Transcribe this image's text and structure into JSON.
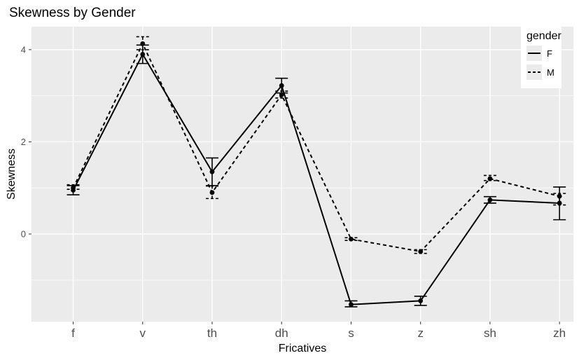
{
  "chart_data": {
    "type": "line",
    "title": "Skewness by Gender",
    "xlabel": "Fricatives",
    "ylabel": "Skewness",
    "categories": [
      "f",
      "v",
      "th",
      "dh",
      "s",
      "z",
      "sh",
      "zh"
    ],
    "ylim": [
      -1.9,
      4.5
    ],
    "yticks": [
      0,
      2,
      4
    ],
    "grid": true,
    "legend": {
      "title": "gender",
      "position": "top-right"
    },
    "series": [
      {
        "name": "F",
        "linestyle": "solid",
        "values": [
          0.95,
          3.9,
          1.35,
          3.22,
          -1.53,
          -1.45,
          0.74,
          0.67
        ],
        "error_low": [
          0.85,
          3.7,
          1.05,
          3.06,
          -1.58,
          -1.55,
          0.67,
          0.31
        ],
        "error_high": [
          1.05,
          4.1,
          1.65,
          3.38,
          -1.45,
          -1.35,
          0.81,
          1.02
        ]
      },
      {
        "name": "M",
        "linestyle": "dashed",
        "values": [
          1.0,
          4.13,
          0.9,
          3.02,
          -0.11,
          -0.38,
          1.2,
          0.82
        ],
        "error_low": [
          0.97,
          4.0,
          0.77,
          2.95,
          -0.14,
          -0.42,
          1.16,
          0.63
        ],
        "error_high": [
          1.07,
          4.28,
          1.04,
          3.1,
          -0.08,
          -0.34,
          1.27,
          0.88
        ]
      }
    ],
    "colors": {
      "panel": "#ebebeb",
      "grid": "#ffffff",
      "line": "#000000"
    }
  }
}
